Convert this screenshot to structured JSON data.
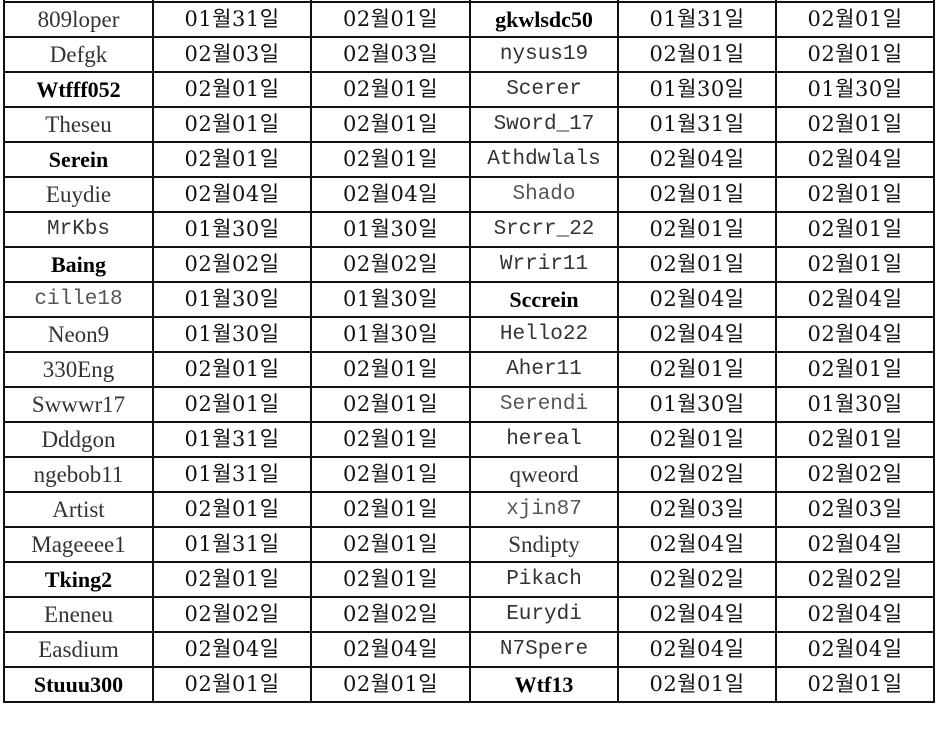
{
  "rows": [
    {
      "left": {
        "name": "809loper",
        "style": "normal",
        "d1": "01월31일",
        "d2": "02월01일"
      },
      "right": {
        "name": "gkwlsdc50",
        "style": "bold",
        "d1": "01월31일",
        "d2": "02월01일"
      }
    },
    {
      "left": {
        "name": "Defgk",
        "style": "normal",
        "d1": "02월03일",
        "d2": "02월03일"
      },
      "right": {
        "name": "nysus19",
        "style": "mono",
        "d1": "02월01일",
        "d2": "02월01일"
      }
    },
    {
      "left": {
        "name": "Wtfff052",
        "style": "bold",
        "d1": "02월01일",
        "d2": "02월01일"
      },
      "right": {
        "name": "Scerer",
        "style": "mono",
        "d1": "01월30일",
        "d2": "01월30일"
      }
    },
    {
      "left": {
        "name": "Theseu",
        "style": "normal",
        "d1": "02월01일",
        "d2": "02월01일"
      },
      "right": {
        "name": "Sword_17",
        "style": "mono",
        "d1": "01월31일",
        "d2": "02월01일"
      }
    },
    {
      "left": {
        "name": "Serein",
        "style": "bold",
        "d1": "02월01일",
        "d2": "02월01일"
      },
      "right": {
        "name": "Athdwlals",
        "style": "mono",
        "d1": "02월04일",
        "d2": "02월04일"
      }
    },
    {
      "left": {
        "name": "Euydie",
        "style": "normal",
        "d1": "02월04일",
        "d2": "02월04일"
      },
      "right": {
        "name": "Shado",
        "style": "mono-light",
        "d1": "02월01일",
        "d2": "02월01일"
      }
    },
    {
      "left": {
        "name": "MrKbs",
        "style": "mono",
        "d1": "01월30일",
        "d2": "01월30일"
      },
      "right": {
        "name": "Srcrr_22",
        "style": "mono",
        "d1": "02월01일",
        "d2": "02월01일"
      }
    },
    {
      "left": {
        "name": "Baing",
        "style": "bold",
        "d1": "02월02일",
        "d2": "02월02일"
      },
      "right": {
        "name": "Wrrir11",
        "style": "mono",
        "d1": "02월01일",
        "d2": "02월01일"
      }
    },
    {
      "left": {
        "name": "cille18",
        "style": "mono-light",
        "d1": "01월30일",
        "d2": "01월30일"
      },
      "right": {
        "name": "Sccrein",
        "style": "bold",
        "d1": "02월04일",
        "d2": "02월04일"
      }
    },
    {
      "left": {
        "name": "Neon9",
        "style": "normal",
        "d1": "01월30일",
        "d2": "01월30일"
      },
      "right": {
        "name": "Hello22",
        "style": "mono",
        "d1": "02월04일",
        "d2": "02월04일"
      }
    },
    {
      "left": {
        "name": "330Eng",
        "style": "normal",
        "d1": "02월01일",
        "d2": "02월01일"
      },
      "right": {
        "name": "Aher11",
        "style": "mono",
        "d1": "02월01일",
        "d2": "02월01일"
      }
    },
    {
      "left": {
        "name": "Swwwr17",
        "style": "normal",
        "d1": "02월01일",
        "d2": "02월01일"
      },
      "right": {
        "name": "Serendi",
        "style": "mono-light",
        "d1": "01월30일",
        "d2": "01월30일"
      }
    },
    {
      "left": {
        "name": "Dddgon",
        "style": "normal",
        "d1": "01월31일",
        "d2": "02월01일"
      },
      "right": {
        "name": "hereal",
        "style": "mono",
        "d1": "02월01일",
        "d2": "02월01일"
      }
    },
    {
      "left": {
        "name": "ngebob11",
        "style": "normal",
        "d1": "01월31일",
        "d2": "02월01일"
      },
      "right": {
        "name": "qweord",
        "style": "normal",
        "d1": "02월02일",
        "d2": "02월02일"
      }
    },
    {
      "left": {
        "name": "Artist",
        "style": "normal",
        "d1": "02월01일",
        "d2": "02월01일"
      },
      "right": {
        "name": "xjin87",
        "style": "mono-light",
        "d1": "02월03일",
        "d2": "02월03일"
      }
    },
    {
      "left": {
        "name": "Mageeee1",
        "style": "normal",
        "d1": "01월31일",
        "d2": "02월01일"
      },
      "right": {
        "name": "Sndipty",
        "style": "normal",
        "d1": "02월04일",
        "d2": "02월04일"
      }
    },
    {
      "left": {
        "name": "Tking2",
        "style": "bold",
        "d1": "02월01일",
        "d2": "02월01일"
      },
      "right": {
        "name": "Pikach",
        "style": "mono",
        "d1": "02월02일",
        "d2": "02월02일"
      }
    },
    {
      "left": {
        "name": "Eneneu",
        "style": "normal",
        "d1": "02월02일",
        "d2": "02월02일"
      },
      "right": {
        "name": "Eurydi",
        "style": "mono",
        "d1": "02월04일",
        "d2": "02월04일"
      }
    },
    {
      "left": {
        "name": "Easdium",
        "style": "normal",
        "d1": "02월04일",
        "d2": "02월04일"
      },
      "right": {
        "name": "N7Spere",
        "style": "mono",
        "d1": "02월04일",
        "d2": "02월04일"
      }
    },
    {
      "left": {
        "name": "Stuuu300",
        "style": "bold",
        "d1": "02월01일",
        "d2": "02월01일"
      },
      "right": {
        "name": "Wtf13",
        "style": "bold",
        "d1": "02월01일",
        "d2": "02월01일"
      }
    }
  ]
}
